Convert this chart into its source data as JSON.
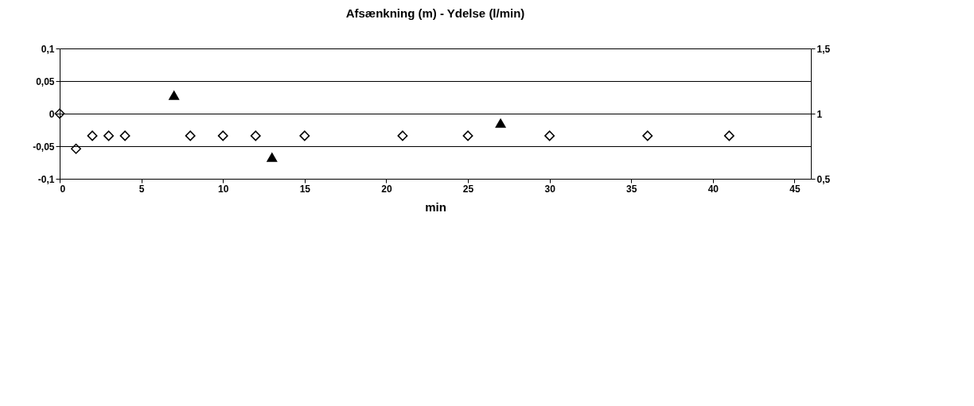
{
  "chart_data": {
    "type": "scatter",
    "title": "Afsænkning (m) - Ydelse (l/min)",
    "xlabel": "min",
    "xlim": [
      0,
      46
    ],
    "xticks": [
      0,
      5,
      10,
      15,
      20,
      25,
      30,
      35,
      40,
      45
    ],
    "ylim": [
      -0.1,
      0.1
    ],
    "yticks": [
      {
        "value": -0.1,
        "label": "-0,1"
      },
      {
        "value": -0.05,
        "label": "-0,05"
      },
      0,
      {
        "value": 0.05,
        "label": "0,05"
      },
      {
        "value": 0.1,
        "label": "0,1"
      }
    ],
    "y2lim": [
      0.5,
      1.5
    ],
    "y2ticks": [
      {
        "value": 0.5,
        "label": "0,5"
      },
      1,
      {
        "value": 1.5,
        "label": "1,5"
      }
    ],
    "grid": "y",
    "series": [
      {
        "color": "#000000",
        "marker": "diamond",
        "x": [
          0,
          1,
          2,
          3,
          4,
          8,
          10,
          12,
          15,
          21,
          25,
          30,
          36,
          41
        ],
        "values": [
          0,
          -0.054,
          -0.034,
          -0.034,
          -0.034,
          -0.034,
          -0.034,
          -0.034,
          -0.034,
          -0.034,
          -0.034,
          -0.034,
          -0.034,
          -0.034
        ]
      },
      {
        "color": "#000000",
        "marker": "triangle",
        "axis": "y2",
        "x": [
          7,
          13,
          27
        ],
        "values": [
          1.14,
          0.665,
          0.926
        ]
      }
    ]
  }
}
